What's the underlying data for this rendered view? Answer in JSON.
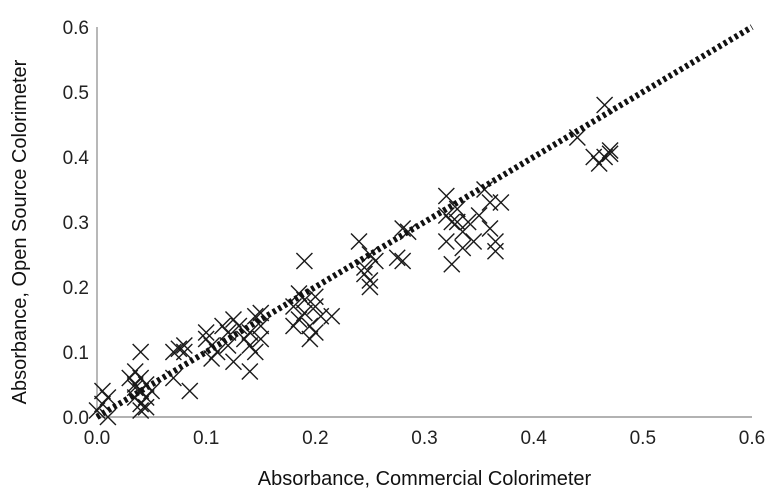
{
  "chart_data": {
    "type": "scatter",
    "title": "",
    "xlabel": "Absorbance, Commercial Colorimeter",
    "ylabel": "Absorbance, Open Source Colorimeter",
    "xlim": [
      0,
      0.6
    ],
    "ylim": [
      0,
      0.6
    ],
    "xticks": [
      "0.0",
      "0.1",
      "0.2",
      "0.3",
      "0.4",
      "0.5",
      "0.6"
    ],
    "yticks": [
      "0.0",
      "0.1",
      "0.2",
      "0.3",
      "0.4",
      "0.5",
      "0.6"
    ],
    "grid": false,
    "legend": "none",
    "marker": "x",
    "marker_color": "#1a1a1a",
    "trendline": {
      "style": "dotted",
      "color": "#111111",
      "from": [
        0.0,
        0.0
      ],
      "to": [
        0.6,
        0.6
      ]
    },
    "points": [
      [
        0.0,
        0.01
      ],
      [
        0.005,
        0.04
      ],
      [
        0.01,
        0.03
      ],
      [
        0.01,
        0.0
      ],
      [
        0.005,
        0.02
      ],
      [
        0.03,
        0.06
      ],
      [
        0.035,
        0.05
      ],
      [
        0.035,
        0.07
      ],
      [
        0.04,
        0.1
      ],
      [
        0.04,
        0.06
      ],
      [
        0.04,
        0.04
      ],
      [
        0.045,
        0.03
      ],
      [
        0.04,
        0.02
      ],
      [
        0.04,
        0.01
      ],
      [
        0.035,
        0.03
      ],
      [
        0.045,
        0.05
      ],
      [
        0.05,
        0.04
      ],
      [
        0.045,
        0.015
      ],
      [
        0.035,
        0.045
      ],
      [
        0.07,
        0.1
      ],
      [
        0.075,
        0.105
      ],
      [
        0.08,
        0.11
      ],
      [
        0.08,
        0.1
      ],
      [
        0.085,
        0.04
      ],
      [
        0.07,
        0.06
      ],
      [
        0.1,
        0.13
      ],
      [
        0.1,
        0.12
      ],
      [
        0.105,
        0.11
      ],
      [
        0.11,
        0.1
      ],
      [
        0.105,
        0.09
      ],
      [
        0.115,
        0.14
      ],
      [
        0.12,
        0.13
      ],
      [
        0.12,
        0.11
      ],
      [
        0.125,
        0.085
      ],
      [
        0.125,
        0.15
      ],
      [
        0.13,
        0.14
      ],
      [
        0.135,
        0.12
      ],
      [
        0.14,
        0.13
      ],
      [
        0.14,
        0.11
      ],
      [
        0.14,
        0.07
      ],
      [
        0.145,
        0.155
      ],
      [
        0.15,
        0.14
      ],
      [
        0.15,
        0.12
      ],
      [
        0.145,
        0.1
      ],
      [
        0.15,
        0.16
      ],
      [
        0.18,
        0.17
      ],
      [
        0.185,
        0.15
      ],
      [
        0.185,
        0.19
      ],
      [
        0.19,
        0.24
      ],
      [
        0.19,
        0.18
      ],
      [
        0.19,
        0.16
      ],
      [
        0.195,
        0.14
      ],
      [
        0.2,
        0.17
      ],
      [
        0.2,
        0.13
      ],
      [
        0.195,
        0.12
      ],
      [
        0.205,
        0.155
      ],
      [
        0.215,
        0.155
      ],
      [
        0.18,
        0.14
      ],
      [
        0.2,
        0.185
      ],
      [
        0.24,
        0.27
      ],
      [
        0.245,
        0.23
      ],
      [
        0.245,
        0.22
      ],
      [
        0.25,
        0.25
      ],
      [
        0.25,
        0.2
      ],
      [
        0.255,
        0.24
      ],
      [
        0.25,
        0.21
      ],
      [
        0.275,
        0.245
      ],
      [
        0.28,
        0.29
      ],
      [
        0.28,
        0.24
      ],
      [
        0.285,
        0.285
      ],
      [
        0.32,
        0.34
      ],
      [
        0.32,
        0.31
      ],
      [
        0.32,
        0.27
      ],
      [
        0.325,
        0.235
      ],
      [
        0.33,
        0.32
      ],
      [
        0.33,
        0.3
      ],
      [
        0.335,
        0.26
      ],
      [
        0.34,
        0.3
      ],
      [
        0.345,
        0.27
      ],
      [
        0.35,
        0.31
      ],
      [
        0.355,
        0.35
      ],
      [
        0.36,
        0.33
      ],
      [
        0.36,
        0.29
      ],
      [
        0.365,
        0.255
      ],
      [
        0.365,
        0.27
      ],
      [
        0.37,
        0.33
      ],
      [
        0.335,
        0.285
      ],
      [
        0.325,
        0.3
      ],
      [
        0.44,
        0.43
      ],
      [
        0.455,
        0.4
      ],
      [
        0.46,
        0.39
      ],
      [
        0.465,
        0.48
      ],
      [
        0.47,
        0.41
      ],
      [
        0.465,
        0.4
      ],
      [
        0.47,
        0.405
      ]
    ]
  }
}
